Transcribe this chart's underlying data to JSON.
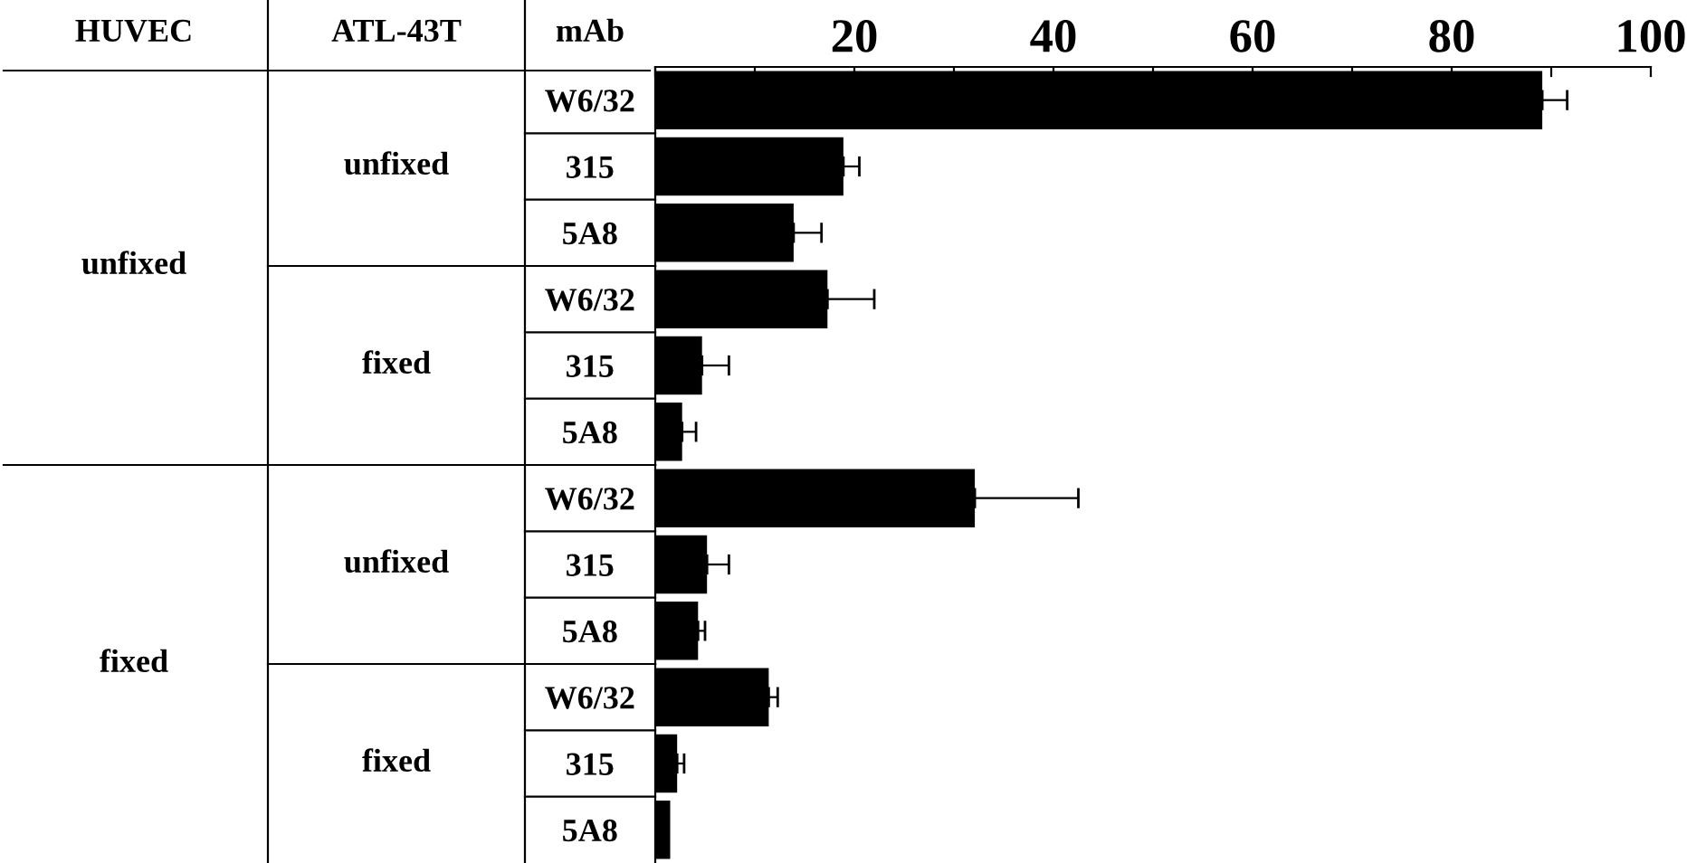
{
  "chart_data": {
    "type": "bar",
    "orientation": "horizontal",
    "categories": [
      "W6/32",
      "315",
      "5A8",
      "W6/32",
      "315",
      "5A8",
      "W6/32",
      "315",
      "5A8",
      "W6/32",
      "315",
      "5A8"
    ],
    "values": [
      89.1,
      18.9,
      13.9,
      17.3,
      4.7,
      2.7,
      32.1,
      5.2,
      4.3,
      11.4,
      2.2,
      1.5
    ],
    "errors": [
      [
        89.1,
        91.6
      ],
      [
        18.9,
        20.5
      ],
      [
        13.9,
        16.7
      ],
      [
        17.3,
        22.0
      ],
      [
        4.7,
        7.4
      ],
      [
        2.7,
        4.1
      ],
      [
        32.1,
        42.5
      ],
      [
        5.2,
        7.4
      ],
      [
        4.3,
        5.0
      ],
      [
        11.4,
        12.3
      ],
      [
        2.2,
        2.9
      ],
      null
    ],
    "color": "#000000",
    "xlim": [
      0,
      100
    ],
    "xticks": [
      {
        "value": 0,
        "label": null
      },
      {
        "value": 10,
        "label": null
      },
      20,
      {
        "value": 30,
        "label": null
      },
      40,
      {
        "value": 50,
        "label": null
      },
      60,
      {
        "value": 70,
        "label": null
      },
      80,
      {
        "value": 90,
        "label": null
      },
      100
    ],
    "annotations": [
      "HUVEC",
      "ATL-43T",
      "mAb",
      "unfixed",
      "fixed",
      "unfixed",
      "fixed",
      "unfixed",
      "fixed"
    ],
    "grid": false,
    "legend": false
  }
}
